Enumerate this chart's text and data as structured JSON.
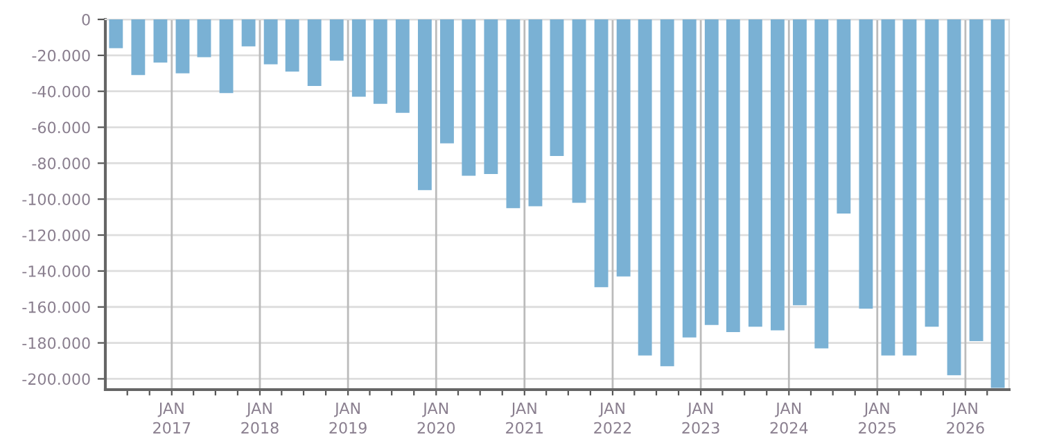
{
  "chart_data": {
    "type": "bar",
    "x": [
      "2016-05-15",
      "2016-08-15",
      "2016-11-15",
      "2017-02-15",
      "2017-05-15",
      "2017-08-15",
      "2017-11-15",
      "2018-02-15",
      "2018-05-15",
      "2018-08-15",
      "2018-11-15",
      "2019-02-15",
      "2019-05-15",
      "2019-08-15",
      "2019-11-15",
      "2020-02-15",
      "2020-05-15",
      "2020-08-15",
      "2020-11-15",
      "2021-02-15",
      "2021-05-15",
      "2021-08-15",
      "2021-11-15",
      "2022-02-15",
      "2022-05-15",
      "2022-08-15",
      "2022-11-15",
      "2023-02-15",
      "2023-05-15",
      "2023-08-15",
      "2023-11-15",
      "2024-02-15",
      "2024-05-15",
      "2024-08-15",
      "2024-11-15",
      "2025-02-15",
      "2025-05-15",
      "2025-08-15",
      "2025-11-15",
      "2026-02-15",
      "2026-05-15"
    ],
    "values": [
      -16000,
      -31000,
      -24000,
      -30000,
      -21000,
      -41000,
      -15000,
      -25000,
      -29000,
      -37000,
      -23000,
      -43000,
      -47000,
      -52000,
      -95000,
      -69000,
      -87000,
      -86000,
      -105000,
      -104000,
      -76000,
      -102000,
      -149000,
      -143000,
      -187000,
      -193000,
      -177000,
      -170000,
      -174000,
      -171000,
      -173000,
      -159000,
      -183000,
      -108000,
      -161000,
      -187000,
      -187000,
      -171000,
      -198000,
      -179000,
      -205000
    ],
    "color": "#7ab1d4",
    "ylim": [
      -206000,
      0
    ],
    "yticks": [
      {
        "value": -200000,
        "label": "-200.000"
      },
      {
        "value": -180000,
        "label": "-180.000"
      },
      {
        "value": -160000,
        "label": "-160.000"
      },
      {
        "value": -140000,
        "label": "-140.000"
      },
      {
        "value": -120000,
        "label": "-120.000"
      },
      {
        "value": -100000,
        "label": "-100.000"
      },
      {
        "value": -80000,
        "label": "-80.000"
      },
      {
        "value": -60000,
        "label": "-60.000"
      },
      {
        "value": -40000,
        "label": "-40.000"
      },
      {
        "value": -20000,
        "label": "-20.000"
      },
      0
    ],
    "xlim": [
      "2016-04-01",
      "2026-07-01"
    ],
    "xticks": [
      {
        "value": "2016-07-01",
        "label": null
      },
      {
        "value": "2016-10-01",
        "label": null
      },
      {
        "value": "2017-01-01",
        "label": "JAN\n2017"
      },
      {
        "value": "2017-04-01",
        "label": null
      },
      {
        "value": "2017-07-01",
        "label": null
      },
      {
        "value": "2017-10-01",
        "label": null
      },
      {
        "value": "2018-01-01",
        "label": "JAN\n2018"
      },
      {
        "value": "2018-04-01",
        "label": null
      },
      {
        "value": "2018-07-01",
        "label": null
      },
      {
        "value": "2018-10-01",
        "label": null
      },
      {
        "value": "2019-01-01",
        "label": "JAN\n2019"
      },
      {
        "value": "2019-04-01",
        "label": null
      },
      {
        "value": "2019-07-01",
        "label": null
      },
      {
        "value": "2019-10-01",
        "label": null
      },
      {
        "value": "2020-01-01",
        "label": "JAN\n2020"
      },
      {
        "value": "2020-04-01",
        "label": null
      },
      {
        "value": "2020-07-01",
        "label": null
      },
      {
        "value": "2020-10-01",
        "label": null
      },
      {
        "value": "2021-01-01",
        "label": "JAN\n2021"
      },
      {
        "value": "2021-04-01",
        "label": null
      },
      {
        "value": "2021-07-01",
        "label": null
      },
      {
        "value": "2021-10-01",
        "label": null
      },
      {
        "value": "2022-01-01",
        "label": "JAN\n2022"
      },
      {
        "value": "2022-04-01",
        "label": null
      },
      {
        "value": "2022-07-01",
        "label": null
      },
      {
        "value": "2022-10-01",
        "label": null
      },
      {
        "value": "2023-01-01",
        "label": "JAN\n2023"
      },
      {
        "value": "2023-04-01",
        "label": null
      },
      {
        "value": "2023-07-01",
        "label": null
      },
      {
        "value": "2023-10-01",
        "label": null
      },
      {
        "value": "2024-01-01",
        "label": "JAN\n2024"
      },
      {
        "value": "2024-04-01",
        "label": null
      },
      {
        "value": "2024-07-01",
        "label": null
      },
      {
        "value": "2024-10-01",
        "label": null
      },
      {
        "value": "2025-01-01",
        "label": "JAN\n2025"
      },
      {
        "value": "2025-04-01",
        "label": null
      },
      {
        "value": "2025-07-01",
        "label": null
      },
      {
        "value": "2025-10-01",
        "label": null
      },
      {
        "value": "2026-01-01",
        "label": "JAN\n2026"
      },
      {
        "value": "2026-04-01",
        "label": null
      }
    ],
    "grid": true
  }
}
